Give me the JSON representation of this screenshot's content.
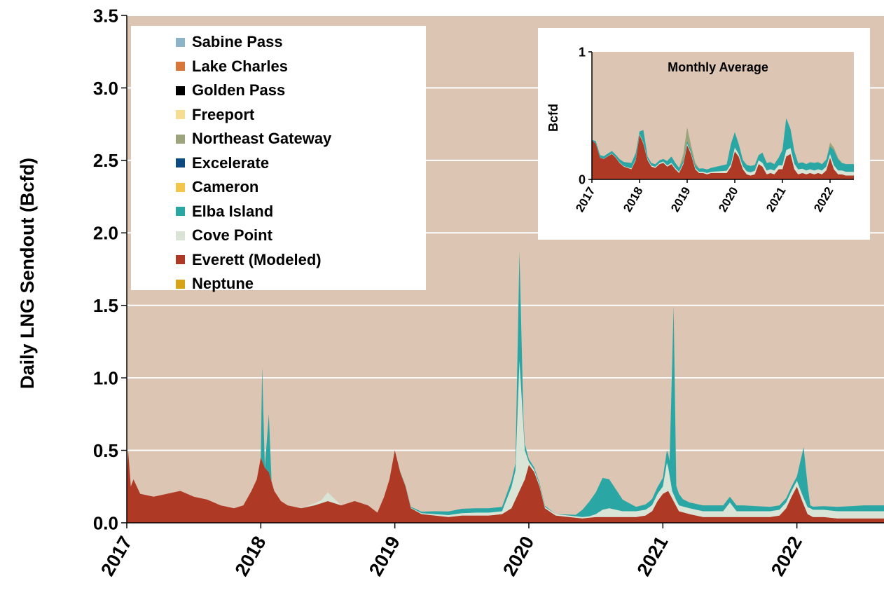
{
  "chart_data": [
    {
      "type": "area",
      "stacked": true,
      "ylabel": "Daily LNG Sendout (Bcfd)",
      "xlabel": "",
      "ylim": [
        0,
        3.5
      ],
      "yticks": [
        0,
        0.5,
        1.0,
        1.5,
        2.0,
        2.5,
        3.0,
        3.5
      ],
      "ytick_labels": [
        "0.0",
        "0.5",
        "1.0",
        "1.5",
        "2.0",
        "2.5",
        "3.0",
        "3.5"
      ],
      "xlim": [
        2017,
        2022.65
      ],
      "xticks": [
        2017,
        2018,
        2019,
        2020,
        2021,
        2022
      ],
      "xtick_labels": [
        "2017",
        "2018",
        "2019",
        "2020",
        "2021",
        "2022"
      ],
      "grid": "horizontal",
      "plot_background": "#dcc5b3",
      "legend_position": "top-left",
      "legend": [
        {
          "name": "Sabine Pass",
          "color": "#8db3c9"
        },
        {
          "name": "Lake Charles",
          "color": "#d9773a"
        },
        {
          "name": "Golden Pass",
          "color": "#000000"
        },
        {
          "name": "Freeport",
          "color": "#f6dd92"
        },
        {
          "name": "Northeast Gateway",
          "color": "#9ca47d"
        },
        {
          "name": "Excelerate",
          "color": "#0d4a80"
        },
        {
          "name": "Cameron",
          "color": "#f3c64b"
        },
        {
          "name": "Elba Island",
          "color": "#2aa7a4"
        },
        {
          "name": "Cove Point",
          "color": "#d9e4d7"
        },
        {
          "name": "Everett (Modeled)",
          "color": "#ae3a26"
        },
        {
          "name": "Neptune",
          "color": "#d8a317"
        }
      ],
      "series": [
        {
          "name": "Everett (Modeled)",
          "color": "#ae3a26",
          "x": [
            2017.0,
            2017.01,
            2017.03,
            2017.05,
            2017.1,
            2017.2,
            2017.3,
            2017.4,
            2017.5,
            2017.6,
            2017.7,
            2017.8,
            2017.87,
            2017.93,
            2017.97,
            2018.0,
            2018.03,
            2018.06,
            2018.1,
            2018.15,
            2018.2,
            2018.3,
            2018.4,
            2018.5,
            2018.6,
            2018.7,
            2018.8,
            2018.87,
            2018.92,
            2018.96,
            2019.0,
            2019.04,
            2019.08,
            2019.12,
            2019.2,
            2019.3,
            2019.4,
            2019.5,
            2019.6,
            2019.7,
            2019.8,
            2019.87,
            2019.92,
            2019.97,
            2020.0,
            2020.04,
            2020.08,
            2020.12,
            2020.2,
            2020.3,
            2020.4,
            2020.5,
            2020.6,
            2020.7,
            2020.8,
            2020.87,
            2020.92,
            2020.96,
            2021.0,
            2021.04,
            2021.08,
            2021.12,
            2021.2,
            2021.3,
            2021.4,
            2021.5,
            2021.6,
            2021.7,
            2021.8,
            2021.87,
            2021.92,
            2021.96,
            2022.0,
            2022.04,
            2022.08,
            2022.12,
            2022.2,
            2022.3,
            2022.4,
            2022.5,
            2022.65
          ],
          "values": [
            0.3,
            0.5,
            0.25,
            0.3,
            0.2,
            0.18,
            0.2,
            0.22,
            0.18,
            0.16,
            0.12,
            0.1,
            0.12,
            0.22,
            0.3,
            0.45,
            0.38,
            0.35,
            0.22,
            0.15,
            0.12,
            0.1,
            0.12,
            0.15,
            0.12,
            0.15,
            0.12,
            0.07,
            0.18,
            0.3,
            0.5,
            0.35,
            0.25,
            0.1,
            0.06,
            0.05,
            0.04,
            0.05,
            0.05,
            0.05,
            0.06,
            0.1,
            0.2,
            0.3,
            0.4,
            0.35,
            0.25,
            0.1,
            0.05,
            0.04,
            0.03,
            0.04,
            0.04,
            0.04,
            0.04,
            0.05,
            0.08,
            0.15,
            0.2,
            0.22,
            0.15,
            0.08,
            0.06,
            0.04,
            0.04,
            0.04,
            0.04,
            0.04,
            0.04,
            0.05,
            0.1,
            0.18,
            0.25,
            0.15,
            0.06,
            0.04,
            0.04,
            0.03,
            0.03,
            0.03,
            0.03
          ]
        },
        {
          "name": "Cove Point",
          "color": "#d9e4d7",
          "x": [
            2017.0,
            2017.5,
            2018.0,
            2018.3,
            2018.45,
            2018.5,
            2018.6,
            2019.0,
            2019.3,
            2019.6,
            2019.8,
            2019.9,
            2019.93,
            2019.97,
            2020.0,
            2020.1,
            2020.3,
            2020.45,
            2020.5,
            2020.55,
            2020.6,
            2020.7,
            2020.8,
            2020.9,
            2020.97,
            2021.0,
            2021.03,
            2021.07,
            2021.1,
            2021.15,
            2021.2,
            2021.3,
            2021.45,
            2021.5,
            2021.55,
            2021.7,
            2021.9,
            2022.0,
            2022.1,
            2022.3,
            2022.5,
            2022.65
          ],
          "values": [
            0.0,
            0.0,
            0.0,
            0.0,
            0.02,
            0.06,
            0.0,
            0.0,
            0.01,
            0.02,
            0.02,
            0.2,
            0.9,
            0.2,
            0.02,
            0.01,
            0.01,
            0.01,
            0.02,
            0.05,
            0.06,
            0.04,
            0.04,
            0.04,
            0.05,
            0.05,
            0.2,
            0.05,
            0.04,
            0.04,
            0.04,
            0.04,
            0.04,
            0.1,
            0.04,
            0.04,
            0.04,
            0.04,
            0.05,
            0.05,
            0.05,
            0.05
          ]
        },
        {
          "name": "Elba Island",
          "color": "#2aa7a4",
          "x": [
            2017.0,
            2017.5,
            2018.0,
            2018.01,
            2018.03,
            2018.06,
            2018.08,
            2018.3,
            2019.0,
            2019.2,
            2019.3,
            2019.5,
            2019.8,
            2019.9,
            2019.93,
            2019.96,
            2020.0,
            2020.2,
            2020.35,
            2020.4,
            2020.45,
            2020.5,
            2020.55,
            2020.6,
            2020.7,
            2020.8,
            2020.9,
            2020.97,
            2021.0,
            2021.05,
            2021.08,
            2021.1,
            2021.15,
            2021.2,
            2021.4,
            2021.6,
            2021.8,
            2022.0,
            2022.05,
            2022.1,
            2022.3,
            2022.5,
            2022.65
          ],
          "values": [
            0.0,
            0.0,
            0.0,
            0.65,
            0.0,
            0.4,
            0.0,
            0.0,
            0.0,
            0.01,
            0.02,
            0.03,
            0.03,
            0.05,
            0.75,
            0.05,
            0.02,
            0.0,
            0.01,
            0.05,
            0.1,
            0.15,
            0.22,
            0.2,
            0.08,
            0.03,
            0.04,
            0.05,
            0.06,
            0.1,
            1.3,
            0.1,
            0.05,
            0.04,
            0.04,
            0.04,
            0.03,
            0.03,
            0.35,
            0.02,
            0.03,
            0.04,
            0.04
          ]
        }
      ]
    },
    {
      "type": "area",
      "stacked": true,
      "title": "Monthly Average",
      "ylabel": "Bcfd",
      "xlabel": "",
      "ylim": [
        0,
        1
      ],
      "yticks": [
        0,
        1
      ],
      "ytick_labels": [
        "0",
        "1"
      ],
      "xlim": [
        2017,
        2022.5
      ],
      "xticks": [
        2017,
        2018,
        2019,
        2020,
        2021,
        2022
      ],
      "xtick_labels": [
        "2017",
        "2018",
        "2019",
        "2020",
        "2021",
        "2022"
      ],
      "plot_background": "#dcc5b3",
      "series": [
        {
          "name": "Everett (Modeled)",
          "color": "#ae3a26",
          "x": [
            2017.0,
            2017.08,
            2017.17,
            2017.25,
            2017.33,
            2017.42,
            2017.5,
            2017.58,
            2017.67,
            2017.75,
            2017.83,
            2017.92,
            2018.0,
            2018.08,
            2018.17,
            2018.25,
            2018.33,
            2018.42,
            2018.5,
            2018.58,
            2018.67,
            2018.75,
            2018.83,
            2018.92,
            2019.0,
            2019.08,
            2019.17,
            2019.25,
            2019.33,
            2019.42,
            2019.5,
            2019.58,
            2019.67,
            2019.75,
            2019.83,
            2019.92,
            2020.0,
            2020.08,
            2020.17,
            2020.25,
            2020.33,
            2020.42,
            2020.5,
            2020.58,
            2020.67,
            2020.75,
            2020.83,
            2020.92,
            2021.0,
            2021.08,
            2021.17,
            2021.25,
            2021.33,
            2021.42,
            2021.5,
            2021.58,
            2021.67,
            2021.75,
            2021.83,
            2021.92,
            2022.0,
            2022.08,
            2022.17,
            2022.25,
            2022.33,
            2022.42,
            2022.5
          ],
          "values": [
            0.31,
            0.28,
            0.17,
            0.16,
            0.18,
            0.2,
            0.17,
            0.13,
            0.1,
            0.09,
            0.08,
            0.15,
            0.35,
            0.28,
            0.15,
            0.1,
            0.09,
            0.12,
            0.13,
            0.1,
            0.12,
            0.08,
            0.05,
            0.12,
            0.27,
            0.2,
            0.08,
            0.05,
            0.05,
            0.04,
            0.05,
            0.05,
            0.05,
            0.05,
            0.05,
            0.1,
            0.22,
            0.18,
            0.08,
            0.04,
            0.03,
            0.04,
            0.12,
            0.1,
            0.04,
            0.05,
            0.04,
            0.08,
            0.08,
            0.18,
            0.2,
            0.08,
            0.04,
            0.05,
            0.04,
            0.05,
            0.04,
            0.05,
            0.04,
            0.07,
            0.17,
            0.08,
            0.04,
            0.04,
            0.03,
            0.03,
            0.03
          ]
        },
        {
          "name": "Cove Point",
          "color": "#d9e4d7",
          "x": [
            2017.0,
            2018.5,
            2019.5,
            2019.92,
            2020.0,
            2020.08,
            2020.5,
            2021.0,
            2021.08,
            2021.5,
            2022.0,
            2022.25,
            2022.5
          ],
          "values": [
            0.0,
            0.01,
            0.01,
            0.02,
            0.03,
            0.02,
            0.03,
            0.03,
            0.05,
            0.03,
            0.03,
            0.03,
            0.03
          ]
        },
        {
          "name": "Elba Island",
          "color": "#2aa7a4",
          "x": [
            2017.0,
            2017.08,
            2017.5,
            2017.92,
            2018.0,
            2018.08,
            2018.17,
            2018.5,
            2018.67,
            2018.92,
            2019.0,
            2019.5,
            2019.83,
            2019.92,
            2020.0,
            2020.08,
            2020.17,
            2020.33,
            2020.5,
            2020.58,
            2020.67,
            2020.83,
            2020.92,
            2021.0,
            2021.08,
            2021.17,
            2021.33,
            2021.5,
            2021.67,
            2021.83,
            2022.0,
            2022.08,
            2022.25,
            2022.5
          ],
          "values": [
            0.0,
            0.02,
            0.02,
            0.05,
            0.02,
            0.1,
            0.02,
            0.02,
            0.05,
            0.02,
            0.02,
            0.03,
            0.05,
            0.16,
            0.12,
            0.08,
            0.05,
            0.05,
            0.04,
            0.08,
            0.06,
            0.05,
            0.06,
            0.12,
            0.25,
            0.15,
            0.05,
            0.05,
            0.06,
            0.05,
            0.06,
            0.12,
            0.06,
            0.06
          ]
        },
        {
          "name": "Northeast Gateway",
          "color": "#9ca47d",
          "x": [
            2017.0,
            2018.83,
            2018.92,
            2019.0,
            2019.08,
            2019.25,
            2021.92,
            2022.0,
            2022.08,
            2022.25,
            2022.5
          ],
          "values": [
            0.0,
            0.0,
            0.05,
            0.11,
            0.04,
            0.0,
            0.0,
            0.03,
            0.02,
            0.0,
            0.0
          ]
        }
      ]
    }
  ]
}
